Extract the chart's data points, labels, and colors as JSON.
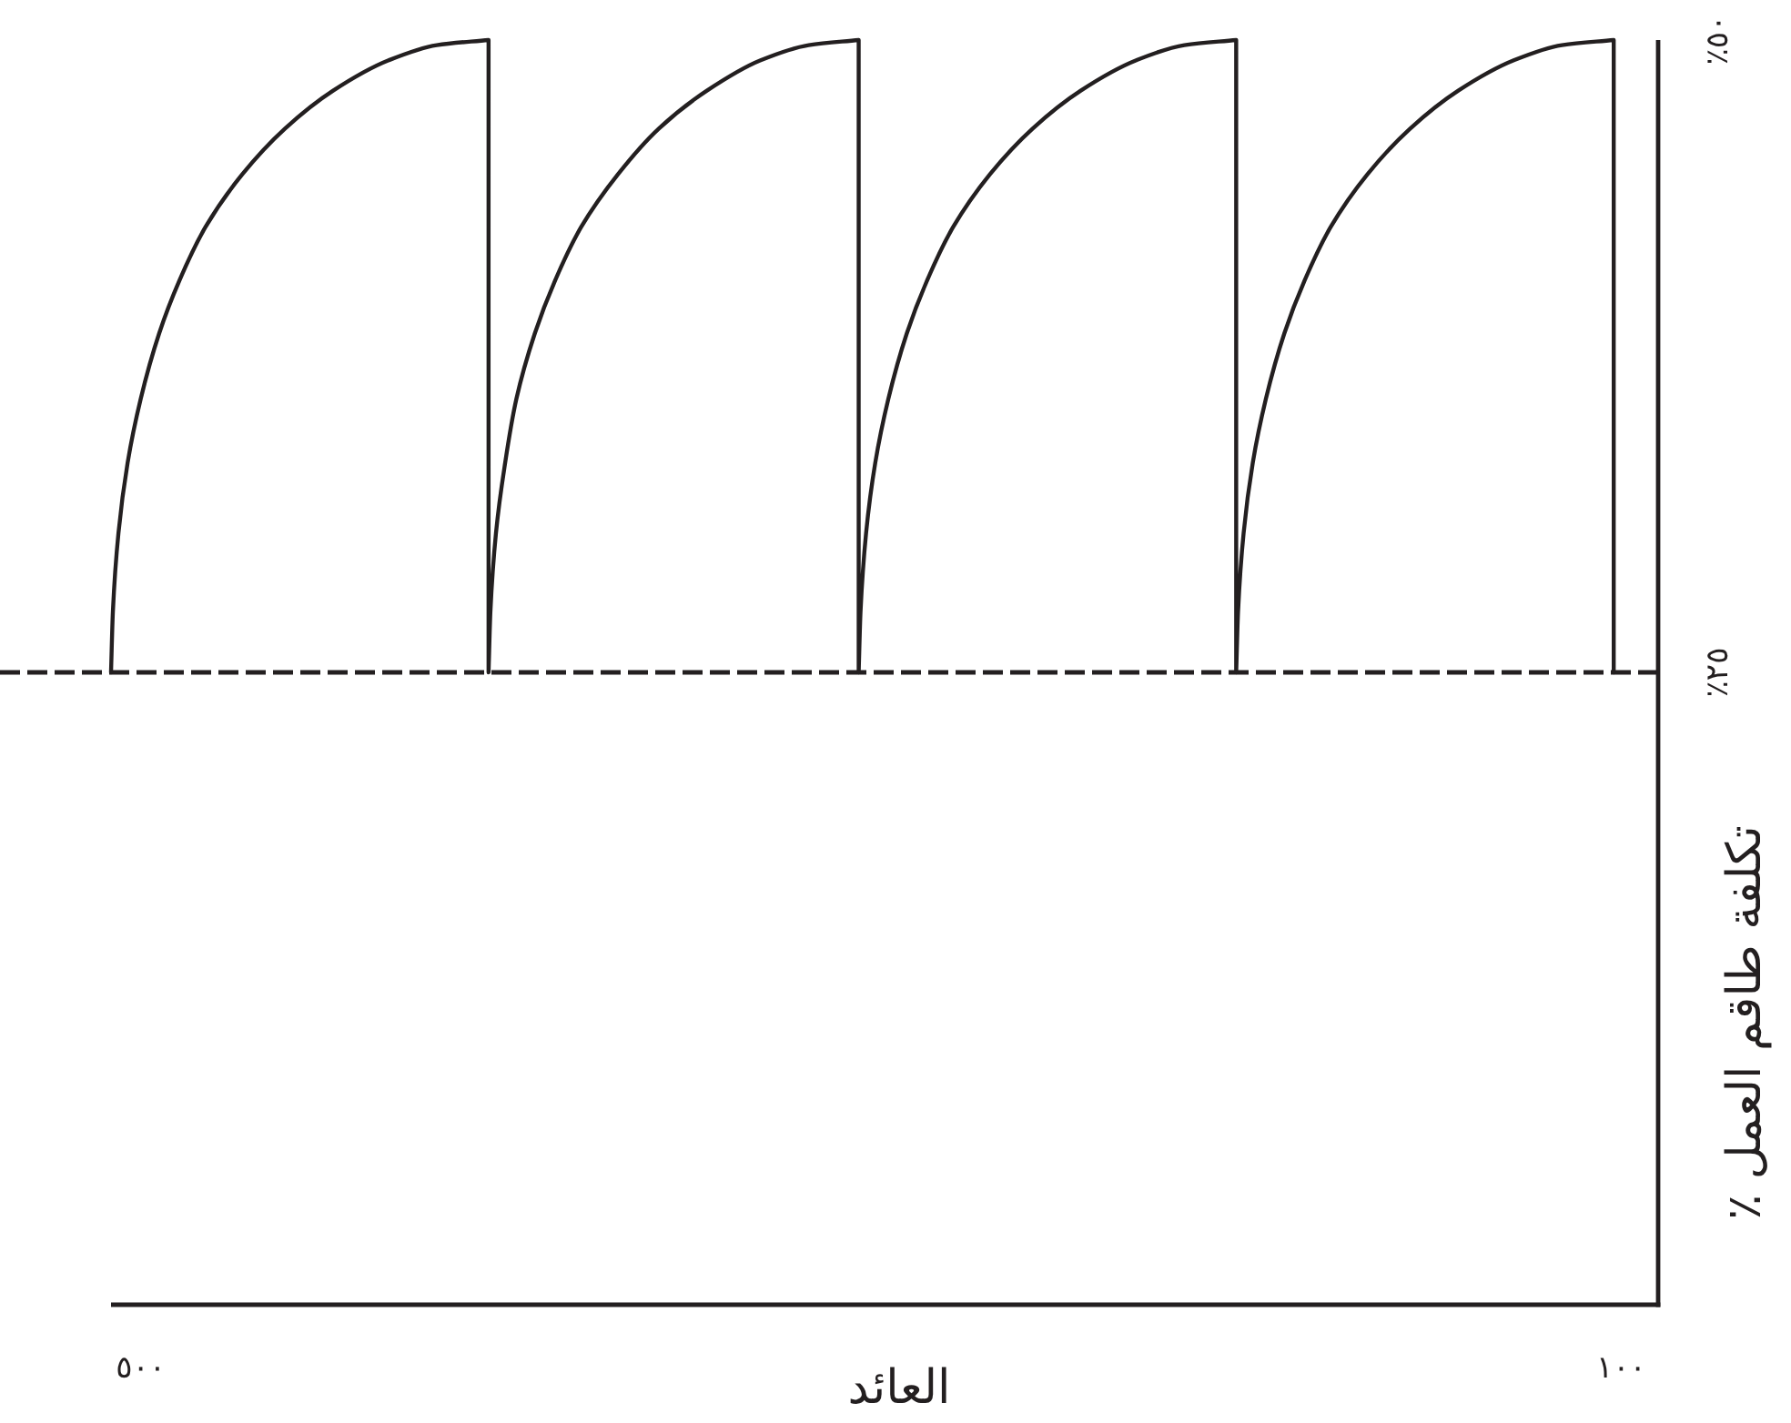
{
  "chart_data": {
    "type": "line",
    "xlabel": "العائد",
    "ylabel": "تكلفة طاقم العمل ٪",
    "color": "#231f20",
    "x": [
      508,
      507.5,
      506,
      503.5,
      500,
      495,
      489.5,
      482.5,
      472.5,
      461,
      448,
      433,
      420,
      406,
      406,
      405.5,
      404,
      401.5,
      398.5,
      393.5,
      388,
      381,
      371,
      360,
      347,
      332.5,
      319.5,
      306,
      306,
      305.5,
      304,
      301.5,
      298,
      293,
      287.5,
      280.5,
      270.5,
      259,
      246,
      231,
      218,
      204,
      204,
      203.5,
      202,
      199.5,
      196,
      191,
      185.5,
      178.5,
      168.5,
      157,
      144,
      129,
      116,
      102,
      102
    ],
    "values": [
      25,
      27.4,
      30.5,
      33.3,
      35.8,
      38.4,
      40.5,
      42.6,
      44.7,
      46.5,
      48,
      49.2,
      49.8,
      50,
      25,
      27.4,
      30.5,
      33.3,
      35.8,
      38.4,
      40.5,
      42.6,
      44.7,
      46.5,
      48,
      49.2,
      49.8,
      50,
      25,
      27.4,
      30.5,
      33.3,
      35.8,
      38.4,
      40.5,
      42.6,
      44.7,
      46.5,
      48,
      49.2,
      49.8,
      50,
      25,
      27.4,
      30.5,
      33.3,
      35.8,
      38.4,
      40.5,
      42.6,
      44.7,
      46.5,
      48,
      49.2,
      49.8,
      50,
      25
    ],
    "xlim": [
      508,
      90
    ],
    "xticks": [
      {
        "value": 500,
        "label": "٥٠٠"
      },
      {
        "value": 100,
        "label": "١٠٠"
      }
    ],
    "ylim": [
      0,
      50
    ],
    "yticks": [
      {
        "value": 25,
        "label": "٢٥٪"
      },
      {
        "value": 50,
        "label": "٥٠٪"
      }
    ],
    "ref_lines": [
      {
        "axis": "y",
        "value": 25,
        "line_style": "dashed",
        "color": "#231f20"
      }
    ],
    "line_style": "solid"
  }
}
